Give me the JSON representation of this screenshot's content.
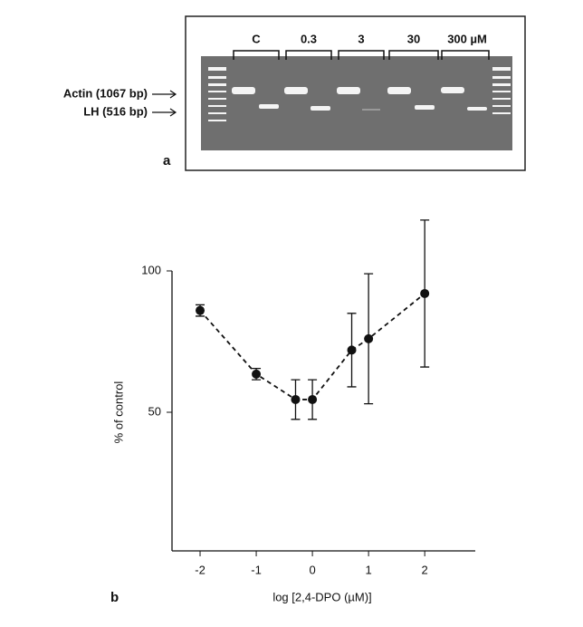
{
  "gel": {
    "lanes": [
      "C",
      "0.3",
      "3",
      "30",
      "300 µM"
    ],
    "bands": [
      "Actin (1067 bp)",
      "LH (516 bp)"
    ],
    "panel": "a"
  },
  "chart_data": {
    "type": "line",
    "panel": "b",
    "xlabel": "log [2,4-DPO (µM)]",
    "ylabel": "% of control",
    "x": [
      -2,
      -1,
      -0.3,
      0,
      0.7,
      1,
      2
    ],
    "series": [
      {
        "name": null,
        "color": "#111111",
        "values": [
          86,
          63.5,
          54.5,
          54.5,
          72,
          76,
          92
        ],
        "errors": [
          2,
          2,
          7,
          7,
          13,
          23,
          26
        ]
      }
    ],
    "xlim": [
      -2.5,
      2.9
    ],
    "ylim": [
      0,
      100
    ],
    "xticks": [
      -2,
      -1,
      0,
      1,
      2
    ],
    "yticks": [
      50,
      100
    ],
    "line_style": "dashed"
  }
}
